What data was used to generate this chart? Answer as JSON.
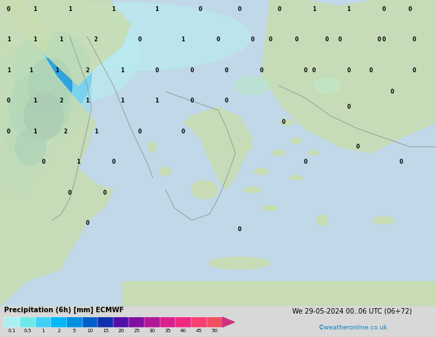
{
  "title_left": "Precipitation (6h) [mm] ECMWF",
  "title_right": "We 29-05-2024 00..06 UTC (06+72)",
  "credit": "©weatheronline.co.uk",
  "colorbar_labels": [
    "0.1",
    "0.5",
    "1",
    "2",
    "5",
    "10",
    "15",
    "20",
    "25",
    "30",
    "35",
    "40",
    "45",
    "50"
  ],
  "colorbar_colors": [
    "#aaf0f0",
    "#70e8e8",
    "#40d0f8",
    "#00b8f8",
    "#0090e0",
    "#0060c8",
    "#1030b0",
    "#5010a8",
    "#8010a0",
    "#b01898",
    "#d82090",
    "#f02880",
    "#f84070",
    "#f05060"
  ],
  "arrow_color": "#d03080",
  "bg_color": "#d8d8d8",
  "sea_color": "#c0d8e8",
  "land_color_main": "#c8ddb0",
  "land_color_light": "#d8eac0",
  "precip_light1": "#b8eef0",
  "precip_light2": "#90e0f0",
  "precip_mid1": "#60c8f0",
  "precip_mid2": "#30b0e8",
  "precip_dark1": "#1090d8",
  "precip_dark2": "#0860c0",
  "precip_dark3": "#0040a8"
}
